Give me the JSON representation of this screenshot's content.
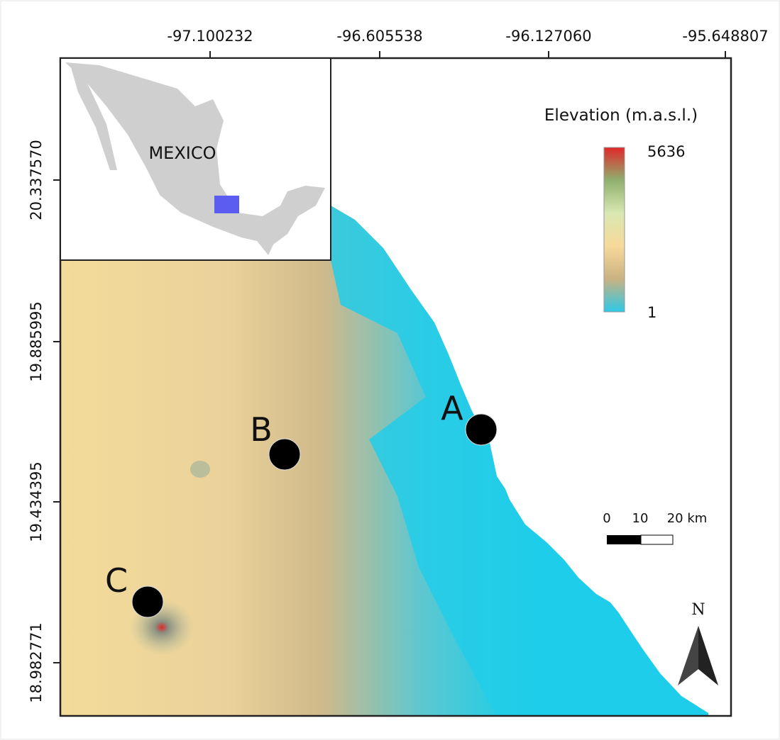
{
  "map": {
    "lon_ticks": [
      "-97.100232",
      "-96.605538",
      "-96.127060",
      "-95.648807"
    ],
    "lat_ticks": [
      "20.337570",
      "19.885995",
      "19.434395",
      "18.982771"
    ],
    "inset": {
      "label": "MEXICO"
    },
    "legend": {
      "title": "Elevation (m.a.s.l.)",
      "max": 5636,
      "min": 1
    },
    "sites": [
      {
        "label": "A"
      },
      {
        "label": "B"
      },
      {
        "label": "C"
      }
    ],
    "scale_bar": {
      "labels": [
        "0",
        "10",
        "20 km"
      ]
    },
    "north": "N"
  }
}
